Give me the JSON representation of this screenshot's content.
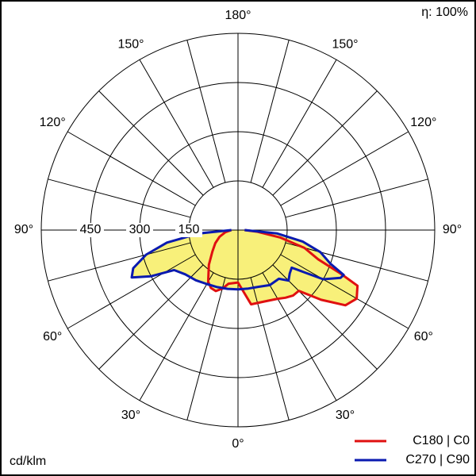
{
  "chart_data": {
    "type": "polar",
    "annotation": "η: 100%",
    "unit_label": "cd/klm",
    "rlim": [
      0,
      600
    ],
    "rticks": [
      150,
      300,
      450
    ],
    "angle_ticks": [
      {
        "value": 0,
        "label": "0°"
      },
      {
        "value": 30,
        "label": "30°"
      },
      {
        "value": 60,
        "label": "60°"
      },
      {
        "value": 90,
        "label": "90°"
      },
      {
        "value": 120,
        "label": "120°"
      },
      {
        "value": 150,
        "label": "150°"
      },
      {
        "value": 180,
        "label": "180°"
      }
    ],
    "angle_gridlines": [
      15,
      45,
      75,
      105,
      135,
      165
    ],
    "fill_color": "#f8f07a",
    "legend": "bottom-right",
    "series": [
      {
        "name": "C180 | C0",
        "color": "#e01010",
        "x": [
          -90,
          -80,
          -70,
          -60,
          -50,
          -40,
          -30,
          -25,
          -20,
          -15,
          -10,
          0,
          10,
          20,
          30,
          35,
          40,
          45,
          50,
          55,
          60,
          65,
          67,
          70,
          75,
          80,
          85,
          90
        ],
        "values": [
          20,
          40,
          60,
          80,
          102,
          138,
          182,
          195,
          198,
          185,
          166,
          160,
          230,
          232,
          242,
          252,
          261,
          262,
          331,
          400,
          418,
          402,
          340,
          260,
          210,
          130,
          60,
          20
        ]
      },
      {
        "name": "C270 | C90",
        "color": "#0a1ab0",
        "x": [
          -90,
          -85,
          -80,
          -75,
          -70,
          -66,
          -62,
          -58,
          -50,
          -40,
          -30,
          -20,
          -10,
          0,
          10,
          20,
          30,
          40,
          45,
          50,
          55,
          60,
          65,
          67,
          70,
          75,
          80,
          85,
          90
        ],
        "values": [
          20,
          120,
          220,
          290,
          340,
          355,
          300,
          230,
          210,
          200,
          190,
          185,
          182,
          181,
          181,
          184,
          194,
          194,
          218,
          206,
          200,
          300,
          345,
          350,
          300,
          260,
          200,
          120,
          20
        ]
      }
    ]
  }
}
